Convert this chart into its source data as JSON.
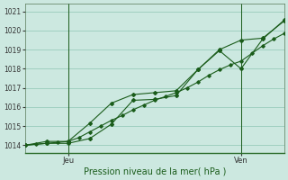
{
  "xlabel": "Pression niveau de la mer( hPa )",
  "bg_color": "#cce8e0",
  "grid_color": "#99ccbb",
  "line_color": "#1a5c1a",
  "ylim": [
    1013.6,
    1021.4
  ],
  "yticks": [
    1014,
    1015,
    1016,
    1017,
    1018,
    1019,
    1020,
    1021
  ],
  "xlim": [
    0,
    48
  ],
  "x_jeu": 8,
  "x_ven": 40,
  "x_tick_positions": [
    8,
    40
  ],
  "x_tick_labels": [
    "Jeu",
    "Ven"
  ],
  "series1_x": [
    0,
    2,
    4,
    6,
    8,
    10,
    12,
    14,
    16,
    18,
    20,
    22,
    24,
    26,
    28,
    30,
    32,
    34,
    36,
    38,
    40,
    42,
    44,
    46,
    48
  ],
  "series1_y": [
    1014.0,
    1014.05,
    1014.1,
    1014.15,
    1014.2,
    1014.4,
    1014.7,
    1015.0,
    1015.3,
    1015.55,
    1015.85,
    1016.1,
    1016.35,
    1016.55,
    1016.75,
    1017.0,
    1017.3,
    1017.65,
    1017.95,
    1018.2,
    1018.4,
    1018.8,
    1019.2,
    1019.55,
    1019.85
  ],
  "series2_x": [
    0,
    4,
    8,
    12,
    16,
    20,
    24,
    28,
    32,
    36,
    40,
    44,
    48
  ],
  "series2_y": [
    1014.0,
    1014.2,
    1014.2,
    1015.15,
    1016.2,
    1016.65,
    1016.75,
    1016.85,
    1017.95,
    1019.0,
    1019.5,
    1019.6,
    1020.5
  ],
  "series3_x": [
    0,
    4,
    8,
    12,
    16,
    20,
    24,
    28,
    32,
    36,
    40,
    44,
    48
  ],
  "series3_y": [
    1014.0,
    1014.1,
    1014.1,
    1014.35,
    1015.1,
    1016.35,
    1016.4,
    1016.6,
    1017.95,
    1018.95,
    1018.0,
    1019.55,
    1020.55
  ]
}
